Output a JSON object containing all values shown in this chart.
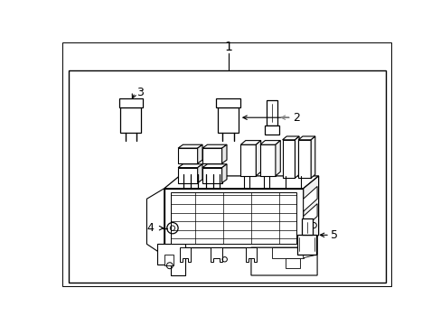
{
  "background_color": "#ffffff",
  "line_color": "#000000",
  "label_color": "#000000",
  "fig_width": 4.89,
  "fig_height": 3.6,
  "dpi": 100
}
